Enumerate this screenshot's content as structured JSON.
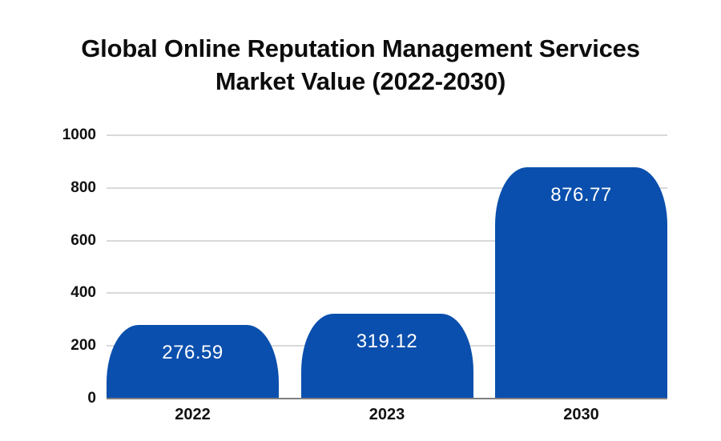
{
  "title": {
    "line1": "Global Online Reputation Management Services",
    "line2": "Market Value (2022-2030)"
  },
  "chart_data": {
    "type": "bar",
    "title": "Global Online Reputation Management Services Market Value (2022-2030)",
    "categories": [
      "2022",
      "2023",
      "2030"
    ],
    "values": [
      276.59,
      319.12,
      876.77
    ],
    "value_labels": [
      "276.59",
      "319.12",
      "876.77"
    ],
    "xlabel": "",
    "ylabel": "",
    "ylim": [
      0,
      1000
    ],
    "yticks": [
      0,
      200,
      400,
      600,
      800,
      1000
    ],
    "grid": "horizontal",
    "legend": "none",
    "colors": {
      "bar": "#0a4fad",
      "value_label": "#ffffff",
      "gridline": "#d9d9d9",
      "axis_line": "#7f7f7f",
      "tick_text": "#111111",
      "title_text": "#0d0d0d",
      "background": "#ffffff"
    }
  }
}
